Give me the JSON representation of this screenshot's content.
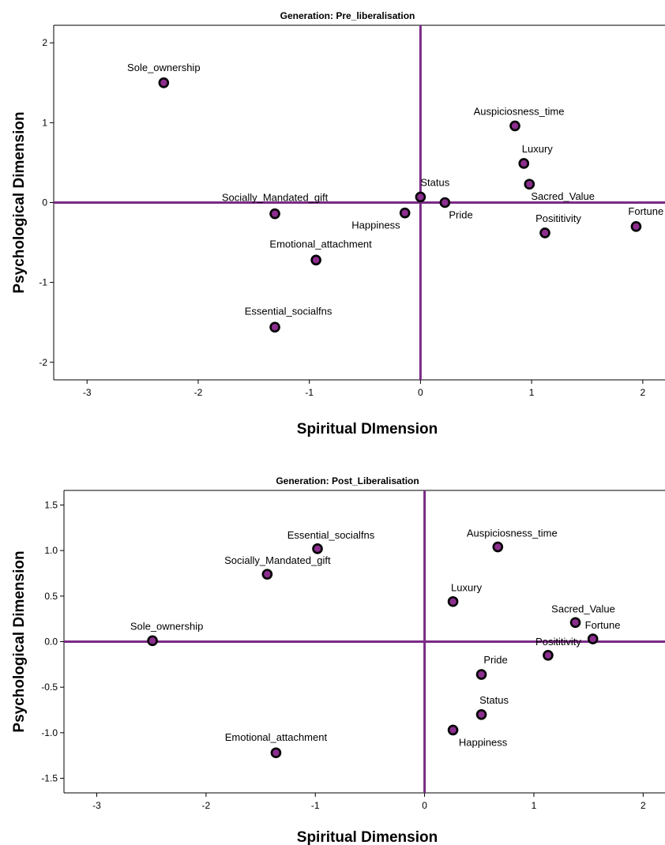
{
  "chart_data": [
    {
      "type": "scatter",
      "title": "Generation: Pre_liberalisation",
      "xlabel": "Spiritual DImension",
      "ylabel": "Psychological Dimension",
      "xlim": [
        -3.3,
        2.2
      ],
      "ylim": [
        -2.22,
        2.22
      ],
      "xticks": [
        -3,
        -2,
        -1,
        0,
        1,
        2
      ],
      "xtick_labels": [
        "-3",
        "-2",
        "-1",
        "0",
        "1",
        "2"
      ],
      "yticks": [
        -2,
        -1,
        0,
        1,
        2
      ],
      "ytick_labels": [
        "-2",
        "-1",
        "0",
        "1",
        "2"
      ],
      "reference_lines": {
        "x": 0,
        "y": 0
      },
      "grid": false,
      "legend": "none",
      "points": [
        {
          "label": "Sole_ownership",
          "x": -2.31,
          "y": 1.5
        },
        {
          "label": "Auspiciosness_time",
          "x": 0.85,
          "y": 0.96
        },
        {
          "label": "Luxury",
          "x": 0.93,
          "y": 0.49
        },
        {
          "label": "Sacred_Value",
          "x": 0.98,
          "y": 0.23
        },
        {
          "label": "Status",
          "x": 0.0,
          "y": 0.07
        },
        {
          "label": "Pride",
          "x": 0.22,
          "y": 0.0
        },
        {
          "label": "Socially_Mandated_gift",
          "x": -1.31,
          "y": -0.14
        },
        {
          "label": "Happiness",
          "x": -0.14,
          "y": -0.13
        },
        {
          "label": "Posititivity",
          "x": 1.12,
          "y": -0.38
        },
        {
          "label": "Fortune",
          "x": 1.94,
          "y": -0.3
        },
        {
          "label": "Emotional_attachment",
          "x": -0.94,
          "y": -0.72
        },
        {
          "label": "Essential_socialfns",
          "x": -1.31,
          "y": -1.56
        }
      ]
    },
    {
      "type": "scatter",
      "title": "Generation: Post_Liberalisation",
      "xlabel": "Spiritual Dimension",
      "ylabel": "Psychological Dimension",
      "xlim": [
        -3.3,
        2.2
      ],
      "ylim": [
        -1.66,
        1.66
      ],
      "xticks": [
        -3,
        -2,
        -1,
        0,
        1,
        2
      ],
      "xtick_labels": [
        "-3",
        "-2",
        "-1",
        "0",
        "1",
        "2"
      ],
      "yticks": [
        -1.5,
        -1.0,
        -0.5,
        0.0,
        0.5,
        1.0,
        1.5
      ],
      "ytick_labels": [
        "-1.5",
        "-1.0",
        "-0.5",
        "0.0",
        "0.5",
        "1.0",
        "1.5"
      ],
      "reference_lines": {
        "x": 0,
        "y": 0
      },
      "grid": false,
      "legend": "none",
      "points": [
        {
          "label": "Essential_socialfns",
          "x": -0.98,
          "y": 1.02
        },
        {
          "label": "Socially_Mandated_gift",
          "x": -1.44,
          "y": 0.74
        },
        {
          "label": "Sole_ownership",
          "x": -2.49,
          "y": 0.01
        },
        {
          "label": "Auspiciosness_time",
          "x": 0.67,
          "y": 1.04
        },
        {
          "label": "Luxury",
          "x": 0.26,
          "y": 0.44
        },
        {
          "label": "Sacred_Value",
          "x": 1.38,
          "y": 0.21
        },
        {
          "label": "Fortune",
          "x": 1.54,
          "y": 0.03
        },
        {
          "label": "Posititivity",
          "x": 1.13,
          "y": -0.15
        },
        {
          "label": "Pride",
          "x": 0.52,
          "y": -0.36
        },
        {
          "label": "Status",
          "x": 0.52,
          "y": -0.8
        },
        {
          "label": "Happiness",
          "x": 0.26,
          "y": -0.97
        },
        {
          "label": "Emotional_attachment",
          "x": -1.36,
          "y": -1.22
        }
      ]
    }
  ],
  "colors": {
    "reference_line": "#7b2a86",
    "marker_fill": "#8b2e8e",
    "marker_edge": "#000000"
  }
}
